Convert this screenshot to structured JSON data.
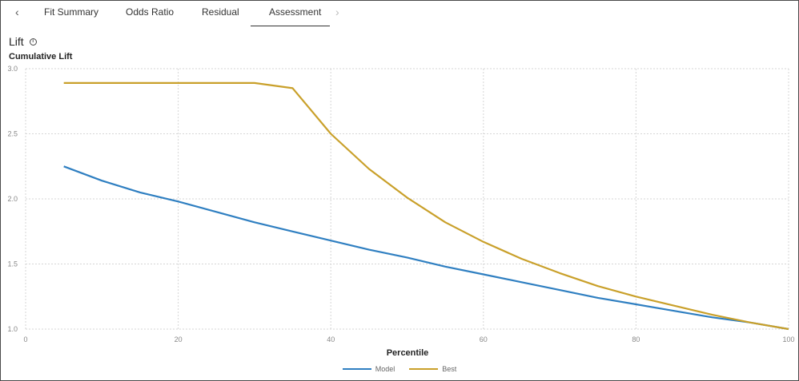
{
  "tabs": {
    "prev_label": "‹",
    "next_label": "›",
    "items": [
      {
        "label": "Fit Summary"
      },
      {
        "label": "Odds Ratio"
      },
      {
        "label": "Residual"
      },
      {
        "label": "Assessment"
      }
    ],
    "selected": "Assessment"
  },
  "panel": {
    "title": "Lift",
    "info_icon": "info-icon"
  },
  "colors": {
    "model": "#2f7fc1",
    "best": "#c9a02a",
    "grid": "#d6d6d6",
    "axis_text": "#888888"
  },
  "chart_data": {
    "type": "line",
    "title": "Cumulative Lift",
    "xlabel": "Percentile",
    "ylabel": "",
    "xlim": [
      0,
      100
    ],
    "ylim": [
      1.0,
      3.0
    ],
    "xticks": [
      0,
      20,
      40,
      60,
      80,
      100
    ],
    "yticks": [
      1.0,
      1.5,
      2.0,
      2.5,
      3.0
    ],
    "xtick_labels": [
      "0",
      "20",
      "40",
      "60",
      "80",
      "100"
    ],
    "ytick_labels": [
      "1.0",
      "1.5",
      "2.0",
      "2.5",
      "3.0"
    ],
    "grid": true,
    "legend_position": "bottom-center",
    "series": [
      {
        "name": "Model",
        "x": [
          5,
          10,
          15,
          20,
          25,
          30,
          35,
          40,
          45,
          50,
          55,
          60,
          65,
          70,
          75,
          80,
          85,
          90,
          95,
          100
        ],
        "values": [
          2.25,
          2.14,
          2.05,
          1.98,
          1.9,
          1.82,
          1.75,
          1.68,
          1.61,
          1.55,
          1.48,
          1.42,
          1.36,
          1.3,
          1.24,
          1.19,
          1.14,
          1.09,
          1.05,
          1.0
        ]
      },
      {
        "name": "Best",
        "x": [
          5,
          10,
          15,
          20,
          25,
          30,
          35,
          40,
          45,
          50,
          55,
          60,
          65,
          70,
          75,
          80,
          85,
          90,
          95,
          100
        ],
        "values": [
          2.89,
          2.89,
          2.89,
          2.89,
          2.89,
          2.89,
          2.85,
          2.5,
          2.23,
          2.01,
          1.82,
          1.67,
          1.54,
          1.43,
          1.33,
          1.25,
          1.18,
          1.11,
          1.05,
          1.0
        ]
      }
    ]
  }
}
